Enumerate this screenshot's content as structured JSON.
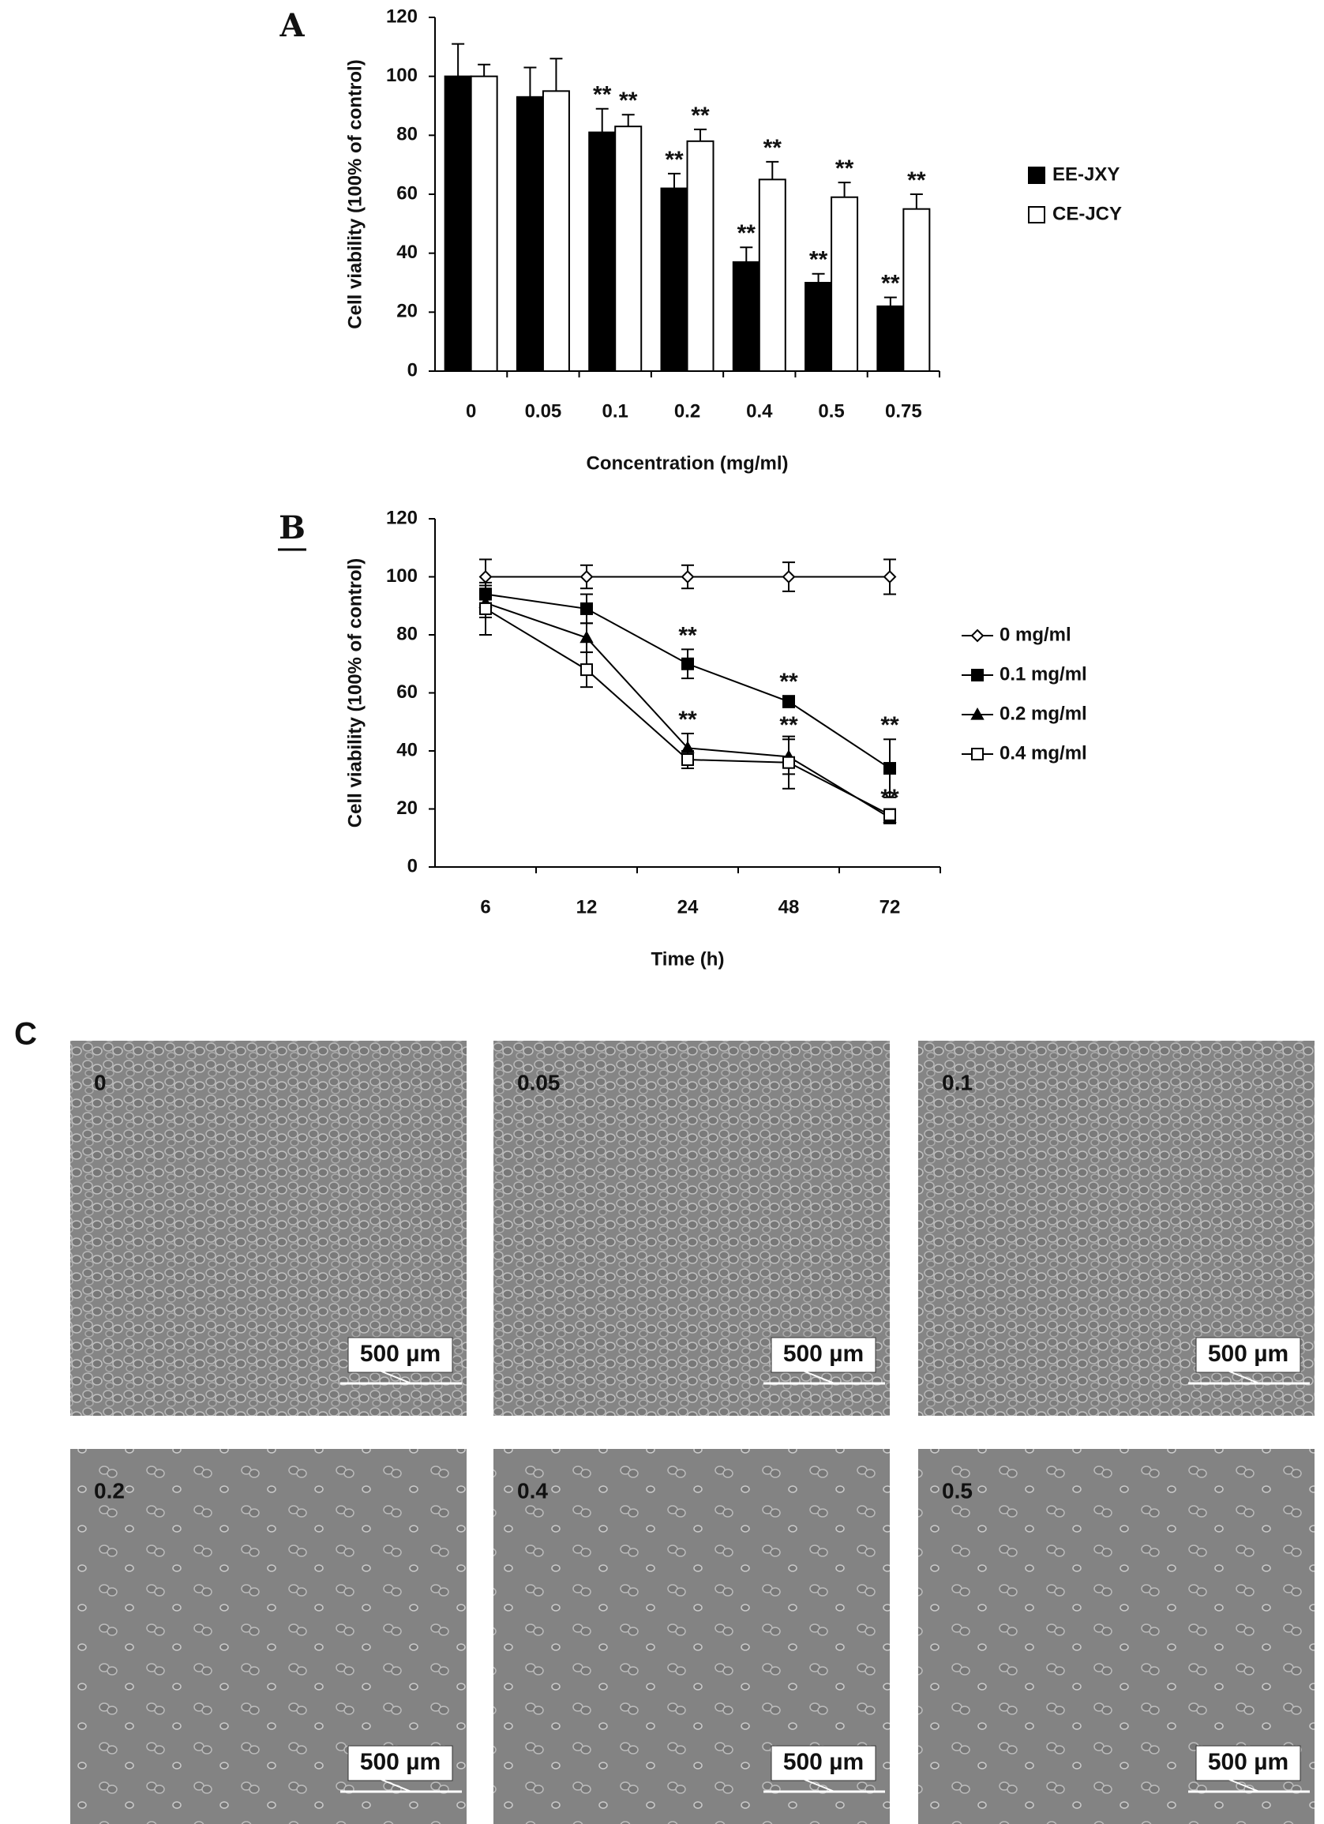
{
  "chart_data": [
    {
      "type": "bar",
      "panel_label": "A",
      "x_label": "Concentration (mg/ml)",
      "y_label": "Cell viability (100% of control)",
      "categories": [
        "0",
        "0.05",
        "0.1",
        "0.2",
        "0.4",
        "0.5",
        "0.75"
      ],
      "ylim": [
        0,
        120
      ],
      "yticks": [
        0,
        20,
        40,
        60,
        80,
        100,
        120
      ],
      "legend": "right",
      "series": [
        {
          "name": "EE-JXY",
          "color": "#000000",
          "values": [
            100,
            93,
            81,
            62,
            37,
            30,
            22
          ],
          "errors": [
            11,
            10,
            8,
            5,
            5,
            3,
            3
          ],
          "significance": [
            null,
            null,
            "**",
            "**",
            "**",
            "**",
            "**"
          ]
        },
        {
          "name": "CE-JCY",
          "color": "#ffffff",
          "values": [
            100,
            95,
            83,
            78,
            65,
            59,
            55
          ],
          "errors": [
            4,
            11,
            4,
            4,
            6,
            5,
            5
          ],
          "significance": [
            null,
            null,
            "**",
            "**",
            "**",
            "**",
            "**"
          ]
        }
      ]
    },
    {
      "type": "line",
      "panel_label": "B",
      "x_label": "Time (h)",
      "y_label": "Cell viability (100% of control)",
      "categories": [
        "6",
        "12",
        "24",
        "48",
        "72"
      ],
      "ylim": [
        0,
        120
      ],
      "yticks": [
        0,
        20,
        40,
        60,
        80,
        100,
        120
      ],
      "legend": "right",
      "series": [
        {
          "name": "0 mg/ml",
          "color": "#000000",
          "marker": "diamond-open",
          "values": [
            100,
            100,
            100,
            100,
            100
          ],
          "errors": [
            6,
            4,
            4,
            5,
            6
          ],
          "significance": [
            null,
            null,
            null,
            null,
            null
          ]
        },
        {
          "name": "0.1 mg/ml",
          "color": "#000000",
          "marker": "square-filled",
          "values": [
            94,
            89,
            70,
            57,
            34
          ],
          "errors": [
            3,
            5,
            5,
            2,
            10
          ],
          "significance": [
            null,
            null,
            "**",
            "**",
            "**"
          ]
        },
        {
          "name": "0.2 mg/ml",
          "color": "#000000",
          "marker": "triangle-filled",
          "values": [
            91,
            79,
            41,
            38,
            17
          ],
          "errors": [
            5,
            5,
            5,
            6,
            2
          ],
          "significance": [
            null,
            null,
            "**",
            "**",
            "**"
          ]
        },
        {
          "name": "0.4 mg/ml",
          "color": "#000000",
          "marker": "square-open",
          "values": [
            89,
            68,
            37,
            36,
            18
          ],
          "errors": [
            9,
            6,
            3,
            9,
            2
          ],
          "significance": [
            null,
            null,
            null,
            null,
            null
          ]
        }
      ]
    }
  ],
  "images": {
    "panel_label": "C",
    "panels": [
      {
        "label": "0",
        "scale": "500 µm"
      },
      {
        "label": "0.05",
        "scale": "500 µm"
      },
      {
        "label": "0.1",
        "scale": "500 µm"
      },
      {
        "label": "0.2",
        "scale": "500 µm"
      },
      {
        "label": "0.4",
        "scale": "500 µm"
      },
      {
        "label": "0.5",
        "scale": "500 µm"
      }
    ]
  }
}
